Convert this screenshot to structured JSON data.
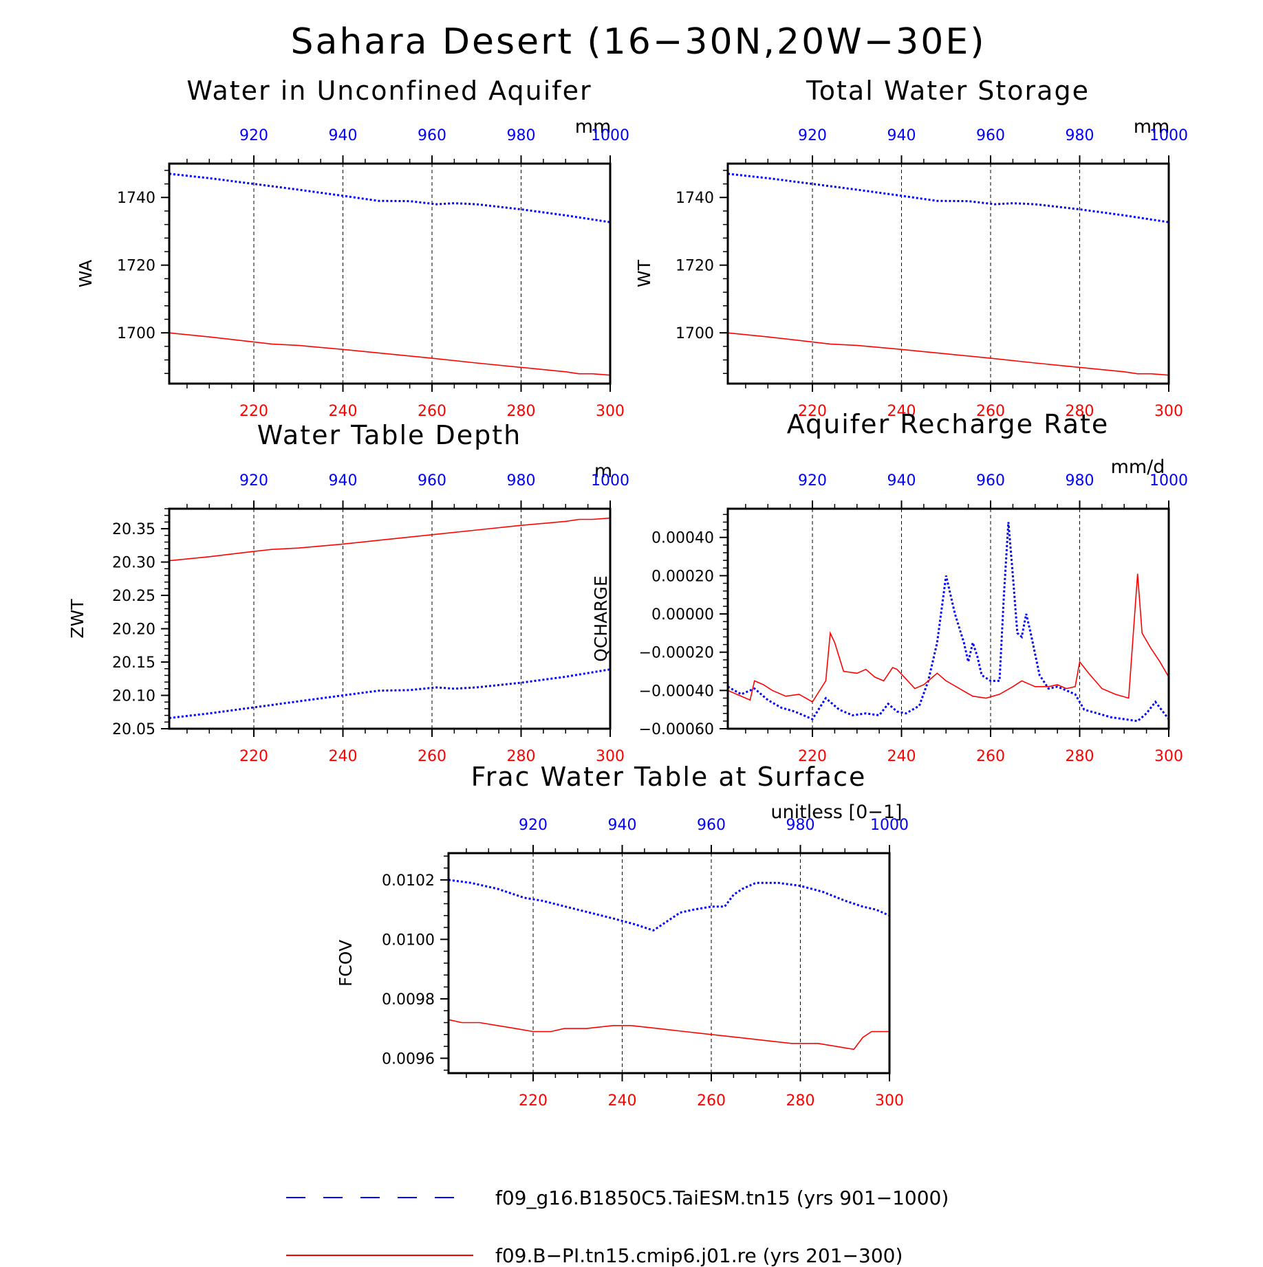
{
  "title": "Sahara Desert (16−30N,20W−30E)",
  "colors": {
    "case1": "#0000ff",
    "case2": "#ff0000"
  },
  "legend": {
    "case1": "f09_g16.B1850C5.TaiESM.tn15 (yrs 901−1000)",
    "case2": "f09.B−PI.tn15.cmip6.j01.re (yrs 201−300)"
  },
  "chart_data": [
    {
      "type": "line",
      "title": "Water in Unconfined Aquifer",
      "units": "mm",
      "ylabel": "WA",
      "ylim": [
        1685,
        1750
      ],
      "yticks": [
        {
          "v": 1700,
          "t": "1700"
        },
        {
          "v": 1720,
          "t": "1720"
        },
        {
          "v": 1740,
          "t": "1740"
        }
      ],
      "yminor": 5,
      "xlim_bottom": [
        201,
        300
      ],
      "xlim_top": [
        901,
        1000
      ],
      "xticks_bottom": [
        220,
        240,
        260,
        280,
        300
      ],
      "xticks_top": [
        920,
        940,
        960,
        980,
        1000
      ],
      "xminor_step": 5,
      "grid_x": true,
      "series": [
        {
          "name": "f09_g16.B1850C5.TaiESM.tn15 (yrs 901−1000)",
          "axis": "top",
          "style": "dotted",
          "x": [
            901,
            910,
            920,
            930,
            940,
            948,
            955,
            961,
            965,
            970,
            980,
            990,
            1000
          ],
          "y": [
            1747,
            1745.7,
            1744,
            1742.3,
            1740.5,
            1739,
            1738.9,
            1738,
            1738.3,
            1738,
            1736.5,
            1734.7,
            1732.7
          ]
        },
        {
          "name": "f09.B−PI.tn15.cmip6.j01.re (yrs 201−300)",
          "axis": "bottom",
          "style": "solid",
          "x": [
            201,
            210,
            220,
            224,
            230,
            240,
            250,
            260,
            270,
            280,
            290,
            293,
            296,
            300
          ],
          "y": [
            1700,
            1698.8,
            1697.3,
            1696.7,
            1696.3,
            1695.1,
            1693.8,
            1692.5,
            1691.1,
            1689.8,
            1688.5,
            1687.9,
            1687.9,
            1687.5
          ]
        }
      ]
    },
    {
      "type": "line",
      "title": "Total Water Storage",
      "units": "mm",
      "ylabel": "WT",
      "ylim": [
        1685,
        1750
      ],
      "yticks": [
        {
          "v": 1700,
          "t": "1700"
        },
        {
          "v": 1720,
          "t": "1720"
        },
        {
          "v": 1740,
          "t": "1740"
        }
      ],
      "yminor": 5,
      "xlim_bottom": [
        201,
        300
      ],
      "xlim_top": [
        901,
        1000
      ],
      "xticks_bottom": [
        220,
        240,
        260,
        280,
        300
      ],
      "xticks_top": [
        920,
        940,
        960,
        980,
        1000
      ],
      "xminor_step": 5,
      "grid_x": true,
      "series": [
        {
          "name": "f09_g16.B1850C5.TaiESM.tn15 (yrs 901−1000)",
          "axis": "top",
          "style": "dotted",
          "x": [
            901,
            910,
            920,
            930,
            940,
            948,
            955,
            961,
            965,
            970,
            980,
            990,
            1000
          ],
          "y": [
            1747,
            1745.7,
            1744,
            1742.3,
            1740.5,
            1739,
            1738.9,
            1738,
            1738.3,
            1738,
            1736.5,
            1734.7,
            1732.7
          ]
        },
        {
          "name": "f09.B−PI.tn15.cmip6.j01.re (yrs 201−300)",
          "axis": "bottom",
          "style": "solid",
          "x": [
            201,
            210,
            220,
            224,
            230,
            240,
            250,
            260,
            270,
            280,
            290,
            293,
            296,
            300
          ],
          "y": [
            1700,
            1698.8,
            1697.3,
            1696.7,
            1696.3,
            1695.1,
            1693.8,
            1692.5,
            1691.1,
            1689.8,
            1688.5,
            1687.9,
            1687.9,
            1687.5
          ]
        }
      ]
    },
    {
      "type": "line",
      "title": "Water Table Depth",
      "units": "m",
      "ylabel": "ZWT",
      "ylim": [
        20.05,
        20.38
      ],
      "yticks": [
        {
          "v": 20.05,
          "t": "20.05"
        },
        {
          "v": 20.1,
          "t": "20.10"
        },
        {
          "v": 20.15,
          "t": "20.15"
        },
        {
          "v": 20.2,
          "t": "20.20"
        },
        {
          "v": 20.25,
          "t": "20.25"
        },
        {
          "v": 20.3,
          "t": "20.30"
        },
        {
          "v": 20.35,
          "t": "20.35"
        }
      ],
      "yminor": 5,
      "xlim_bottom": [
        201,
        300
      ],
      "xlim_top": [
        901,
        1000
      ],
      "xticks_bottom": [
        220,
        240,
        260,
        280,
        300
      ],
      "xticks_top": [
        920,
        940,
        960,
        980,
        1000
      ],
      "xminor_step": 5,
      "grid_x": true,
      "series": [
        {
          "name": "f09_g16.B1850C5.TaiESM.tn15 (yrs 901−1000)",
          "axis": "top",
          "style": "dotted",
          "x": [
            901,
            910,
            920,
            930,
            940,
            948,
            955,
            961,
            965,
            970,
            980,
            990,
            1000
          ],
          "y": [
            20.066,
            20.073,
            20.082,
            20.091,
            20.1,
            20.107,
            20.108,
            20.112,
            20.11,
            20.112,
            20.119,
            20.128,
            20.139
          ]
        },
        {
          "name": "f09.B−PI.tn15.cmip6.j01.re (yrs 201−300)",
          "axis": "bottom",
          "style": "solid",
          "x": [
            201,
            210,
            220,
            224,
            230,
            240,
            250,
            260,
            270,
            280,
            290,
            293,
            296,
            300
          ],
          "y": [
            20.302,
            20.308,
            20.316,
            20.319,
            20.321,
            20.327,
            20.334,
            20.341,
            20.348,
            20.355,
            20.361,
            20.364,
            20.364,
            20.366
          ]
        }
      ]
    },
    {
      "type": "line",
      "title": "Aquifer Recharge Rate",
      "units": "mm/d",
      "ylabel": "QCHARGE",
      "ylim": [
        -0.0006,
        0.00055
      ],
      "yticks": [
        {
          "v": -0.0006,
          "t": "−0.00060"
        },
        {
          "v": -0.0004,
          "t": "−0.00040"
        },
        {
          "v": -0.0002,
          "t": "−0.00020"
        },
        {
          "v": 0.0,
          "t": "0.00000"
        },
        {
          "v": 0.0002,
          "t": "0.00020"
        },
        {
          "v": 0.0004,
          "t": "0.00040"
        }
      ],
      "yminor": 5,
      "xlim_bottom": [
        201,
        300
      ],
      "xlim_top": [
        901,
        1000
      ],
      "xticks_bottom": [
        220,
        240,
        260,
        280,
        300
      ],
      "xticks_top": [
        920,
        940,
        960,
        980,
        1000
      ],
      "xminor_step": 5,
      "grid_x": true,
      "series": [
        {
          "name": "f09_g16.B1850C5.TaiESM.tn15 (yrs 901−1000)",
          "axis": "top",
          "style": "dotted",
          "x": [
            901,
            904,
            907,
            910,
            913,
            916,
            918,
            920,
            923,
            926,
            929,
            932,
            935,
            937,
            939,
            941,
            944,
            946,
            948,
            950,
            952,
            954,
            955,
            956,
            957,
            958,
            960,
            962,
            963,
            964,
            965,
            966,
            967,
            968,
            969,
            971,
            973,
            975,
            977,
            979,
            981,
            984,
            987,
            990,
            993,
            995,
            997,
            1000
          ],
          "y": [
            -0.00038,
            -0.00042,
            -0.00039,
            -0.00045,
            -0.00049,
            -0.00051,
            -0.00053,
            -0.00055,
            -0.00044,
            -0.0005,
            -0.00053,
            -0.00052,
            -0.00053,
            -0.00047,
            -0.00051,
            -0.00052,
            -0.00048,
            -0.00035,
            -0.00015,
            0.0002,
            0.0,
            -0.00015,
            -0.00025,
            -0.00015,
            -0.00022,
            -0.00032,
            -0.00035,
            -0.00035,
            0.0001,
            0.00048,
            0.0002,
            -0.0001,
            -0.00012,
            0.0,
            -0.0001,
            -0.00032,
            -0.00039,
            -0.00038,
            -0.0004,
            -0.00042,
            -0.0005,
            -0.00052,
            -0.00054,
            -0.00055,
            -0.00056,
            -0.00052,
            -0.00046,
            -0.00055
          ]
        },
        {
          "name": "f09.B−PI.tn15.cmip6.j01.re (yrs 201−300)",
          "axis": "bottom",
          "style": "solid",
          "x": [
            201,
            203,
            206,
            207,
            209,
            211,
            214,
            217,
            220,
            223,
            224,
            225,
            227,
            230,
            232,
            234,
            236,
            238,
            239,
            241,
            243,
            245,
            247,
            248,
            250,
            253,
            256,
            259,
            262,
            265,
            267,
            270,
            273,
            275,
            277,
            279,
            280,
            282,
            285,
            288,
            291,
            293,
            294,
            296,
            298,
            300
          ],
          "y": [
            -0.0004,
            -0.00042,
            -0.00045,
            -0.00035,
            -0.00037,
            -0.0004,
            -0.00043,
            -0.00042,
            -0.00046,
            -0.00035,
            -0.0001,
            -0.00015,
            -0.0003,
            -0.00031,
            -0.00029,
            -0.00033,
            -0.00035,
            -0.00028,
            -0.00029,
            -0.00034,
            -0.00039,
            -0.00037,
            -0.00033,
            -0.00031,
            -0.00035,
            -0.00039,
            -0.00043,
            -0.00044,
            -0.00042,
            -0.00038,
            -0.00035,
            -0.00038,
            -0.00038,
            -0.00037,
            -0.00039,
            -0.00038,
            -0.00025,
            -0.00031,
            -0.00039,
            -0.00042,
            -0.00044,
            0.00021,
            -0.0001,
            -0.00018,
            -0.00025,
            -0.00033
          ]
        }
      ]
    },
    {
      "type": "line",
      "title": "Frac Water Table at Surface",
      "units": "unitless [0−1]",
      "ylabel": "FCOV",
      "ylim": [
        0.00955,
        0.01029
      ],
      "yticks": [
        {
          "v": 0.0096,
          "t": "0.0096"
        },
        {
          "v": 0.0098,
          "t": "0.0098"
        },
        {
          "v": 0.01,
          "t": "0.0100"
        },
        {
          "v": 0.0102,
          "t": "0.0102"
        }
      ],
      "yminor": 5,
      "xlim_bottom": [
        201,
        300
      ],
      "xlim_top": [
        901,
        1000
      ],
      "xticks_bottom": [
        220,
        240,
        260,
        280,
        300
      ],
      "xticks_top": [
        920,
        940,
        960,
        980,
        1000
      ],
      "xminor_step": 5,
      "grid_x": true,
      "series": [
        {
          "name": "f09_g16.B1850C5.TaiESM.tn15 (yrs 901−1000)",
          "axis": "top",
          "style": "dotted",
          "x": [
            901,
            906,
            912,
            918,
            922,
            930,
            938,
            943,
            947,
            950,
            953,
            956,
            960,
            963,
            965,
            967,
            970,
            975,
            980,
            985,
            990,
            994,
            997,
            1000
          ],
          "y": [
            0.0102,
            0.01019,
            0.01017,
            0.01014,
            0.01013,
            0.0101,
            0.01007,
            0.01005,
            0.01003,
            0.01006,
            0.01009,
            0.0101,
            0.01011,
            0.01011,
            0.01015,
            0.01017,
            0.01019,
            0.01019,
            0.01018,
            0.01016,
            0.01013,
            0.01011,
            0.0101,
            0.01008
          ]
        },
        {
          "name": "f09.B−PI.tn15.cmip6.j01.re (yrs 201−300)",
          "axis": "bottom",
          "style": "solid",
          "x": [
            201,
            204,
            208,
            212,
            216,
            220,
            224,
            227,
            232,
            238,
            242,
            248,
            254,
            260,
            266,
            272,
            278,
            284,
            288,
            292,
            294,
            296,
            300
          ],
          "y": [
            0.00973,
            0.00972,
            0.00972,
            0.00971,
            0.0097,
            0.00969,
            0.00969,
            0.0097,
            0.0097,
            0.00971,
            0.00971,
            0.0097,
            0.00969,
            0.00968,
            0.00967,
            0.00966,
            0.00965,
            0.00965,
            0.00964,
            0.00963,
            0.00967,
            0.00969,
            0.00969
          ]
        }
      ]
    }
  ]
}
